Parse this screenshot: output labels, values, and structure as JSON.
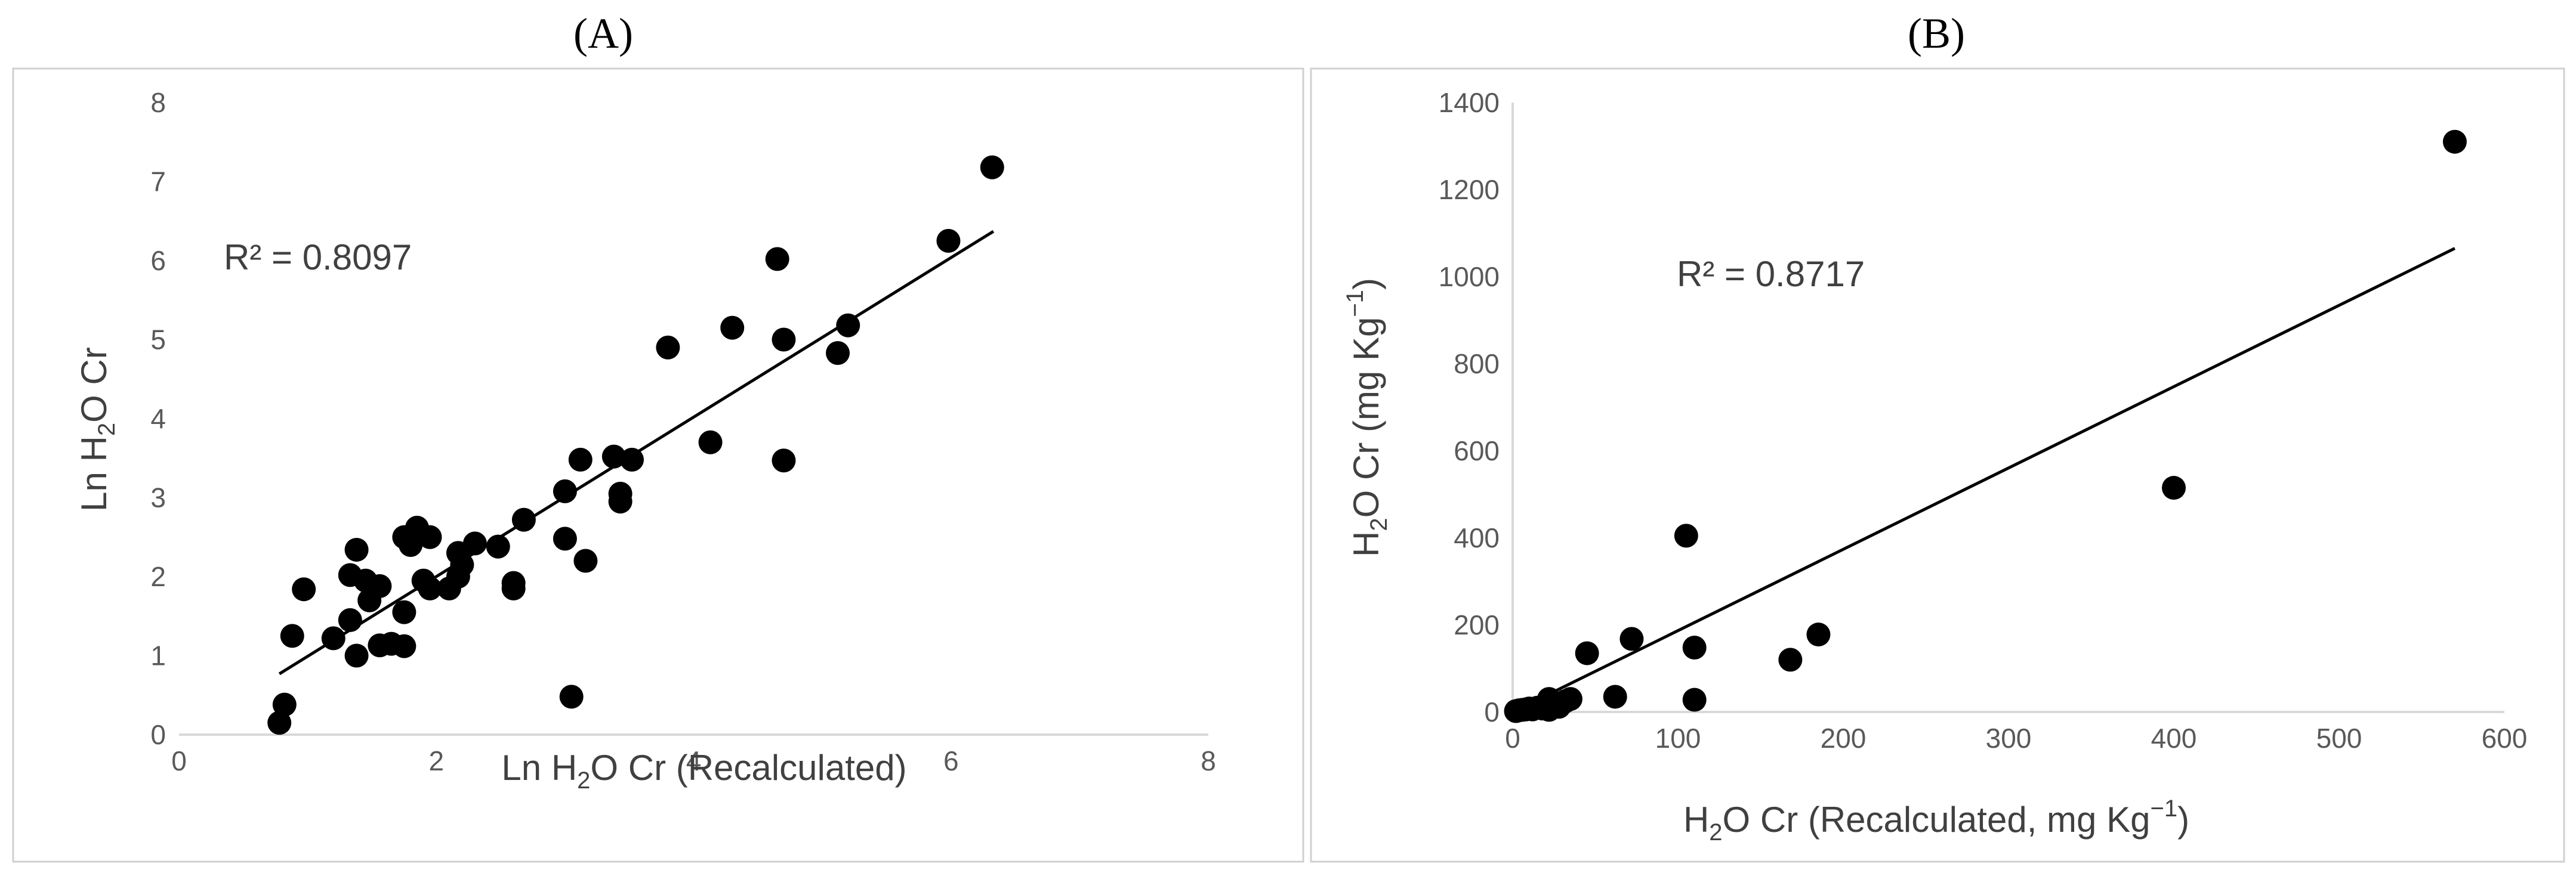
{
  "chart_data": [
    {
      "type": "scatter",
      "panel_label": "(A)",
      "xlabel": {
        "main": "Ln H",
        "sub": "2",
        "rest": "O Cr (Recalculated)"
      },
      "ylabel": {
        "main": "Ln H",
        "sub": "2",
        "rest": "O Cr"
      },
      "xlim": [
        0,
        8
      ],
      "ylim": [
        0,
        8
      ],
      "xticks": [
        "0",
        "2",
        "4",
        "6",
        "8"
      ],
      "yticks": [
        "0",
        "1",
        "2",
        "3",
        "4",
        "5",
        "6",
        "7",
        "8"
      ],
      "r2_label": "R² = 0.8097",
      "trendline": {
        "x": [
          0.78,
          6.33
        ],
        "y": [
          0.77,
          6.37
        ]
      },
      "points": [
        [
          0.78,
          0.15
        ],
        [
          0.82,
          0.38
        ],
        [
          0.88,
          1.25
        ],
        [
          0.97,
          1.84
        ],
        [
          1.2,
          1.22
        ],
        [
          1.33,
          1.45
        ],
        [
          1.33,
          2.02
        ],
        [
          1.38,
          2.34
        ],
        [
          1.38,
          1.0
        ],
        [
          1.45,
          1.95
        ],
        [
          1.48,
          1.7
        ],
        [
          1.56,
          1.88
        ],
        [
          1.56,
          1.13
        ],
        [
          1.65,
          1.15
        ],
        [
          1.75,
          1.55
        ],
        [
          1.75,
          2.5
        ],
        [
          1.75,
          1.12
        ],
        [
          1.8,
          2.4
        ],
        [
          1.85,
          2.62
        ],
        [
          1.9,
          1.95
        ],
        [
          1.95,
          2.5
        ],
        [
          1.95,
          1.85
        ],
        [
          2.1,
          1.85
        ],
        [
          2.17,
          2.0
        ],
        [
          2.17,
          2.3
        ],
        [
          2.2,
          2.15
        ],
        [
          2.3,
          2.42
        ],
        [
          2.48,
          2.38
        ],
        [
          2.6,
          1.85
        ],
        [
          2.6,
          1.92
        ],
        [
          2.68,
          2.72
        ],
        [
          3.0,
          3.08
        ],
        [
          3.0,
          2.48
        ],
        [
          3.05,
          0.48
        ],
        [
          3.12,
          3.48
        ],
        [
          3.16,
          2.2
        ],
        [
          3.38,
          3.52
        ],
        [
          3.43,
          3.05
        ],
        [
          3.43,
          2.95
        ],
        [
          3.52,
          3.48
        ],
        [
          3.8,
          4.9
        ],
        [
          4.13,
          3.7
        ],
        [
          4.3,
          5.15
        ],
        [
          4.65,
          6.02
        ],
        [
          4.7,
          5.0
        ],
        [
          4.7,
          3.47
        ],
        [
          5.12,
          4.83
        ],
        [
          5.2,
          5.18
        ],
        [
          5.98,
          6.25
        ],
        [
          6.32,
          7.18
        ]
      ]
    },
    {
      "type": "scatter",
      "panel_label": "(B)",
      "xlabel": {
        "main": "H",
        "sub": "2",
        "rest": "O Cr (Recalculated, mg Kg",
        "sup": "−1",
        "end": ")"
      },
      "ylabel": {
        "main": "H",
        "sub": "2",
        "rest": "O Cr (mg Kg",
        "sup": "−1",
        "end": ")"
      },
      "xlim": [
        0,
        600
      ],
      "ylim": [
        0,
        1400
      ],
      "xticks": [
        "0",
        "100",
        "200",
        "300",
        "400",
        "500",
        "600"
      ],
      "yticks": [
        "0",
        "200",
        "400",
        "600",
        "800",
        "1000",
        "1200",
        "1400"
      ],
      "r2_label": "R² = 0.8717",
      "trendline": {
        "x": [
          0,
          570
        ],
        "y": [
          0,
          1065
        ]
      },
      "points": [
        [
          2,
          2
        ],
        [
          4,
          4
        ],
        [
          6,
          5
        ],
        [
          8,
          6
        ],
        [
          10,
          8
        ],
        [
          12,
          6
        ],
        [
          15,
          10
        ],
        [
          18,
          8
        ],
        [
          20,
          10
        ],
        [
          22,
          30
        ],
        [
          22,
          5
        ],
        [
          25,
          15
        ],
        [
          28,
          12
        ],
        [
          30,
          20
        ],
        [
          32,
          25
        ],
        [
          35,
          30
        ],
        [
          45,
          135
        ],
        [
          62,
          35
        ],
        [
          72,
          168
        ],
        [
          105,
          405
        ],
        [
          110,
          148
        ],
        [
          110,
          28
        ],
        [
          168,
          120
        ],
        [
          185,
          178
        ],
        [
          400,
          515
        ],
        [
          570,
          1310
        ]
      ]
    }
  ]
}
